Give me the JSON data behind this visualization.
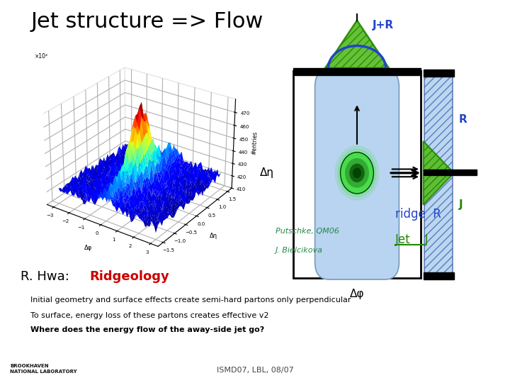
{
  "title": "Jet structure => Flow",
  "title_fontsize": 22,
  "title_color": "#000000",
  "bg_color": "#ffffff",
  "bottom_text_lines": [
    "Initial geometry and surface effects create semi-hard partons only perpendicular",
    "To surface, energy loss of these partons creates effective v2",
    "Where does the energy flow of the away-side jet go?"
  ],
  "bottom_text_bold_line": "Where does the energy flow of the away-side jet go?",
  "footer_text": "ISMD07, LBL, 08/07",
  "putschke_text": "Putschke, QM06",
  "bielcikova_text": "J. Bielcikova",
  "rhwa_text": "R. Hwa:  ",
  "ridgeology_text": "Ridgeology",
  "ridge_label": "ridge  R",
  "jet_label": "Jet    J",
  "jplusr_label": "J+R",
  "r_label": "R",
  "j_label": "J",
  "delta_eta_label": "Δη",
  "delta_phi_label": "Δφ",
  "pill_color": "#b8d4f0",
  "jet_color_outer": "#44dd44",
  "jet_color_inner": "#008800",
  "triangle_color": "#228800",
  "arc_color": "#2244cc",
  "jplusr_color": "#2244cc",
  "r_label_color": "#2244cc",
  "j_label_color": "#228800",
  "ridge_color": "#2244cc",
  "jet_leg_color": "#228800",
  "putschke_color": "#228844",
  "ridgeology_color": "#cc0000",
  "r_bar_color": "#aaccee"
}
